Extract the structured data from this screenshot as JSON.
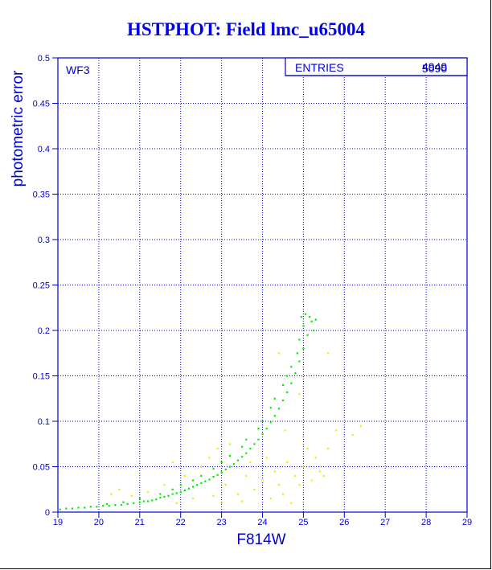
{
  "window": {
    "title": "HSTPHOT: Field lmc_u65004"
  },
  "colors": {
    "frame": "#0000cc",
    "grid": "#0000cc",
    "primary_points": "#00ee00",
    "secondary_points": "#eeee00",
    "title": "#0000ee"
  },
  "chart_data": {
    "type": "scatter",
    "title": "HSTPHOT: Field lmc_u65004",
    "xlabel": "F814W",
    "ylabel": "photometric error",
    "xlim": [
      19,
      29
    ],
    "ylim": [
      0,
      0.5
    ],
    "xticks": [
      "19",
      "20",
      "21",
      "22",
      "23",
      "24",
      "25",
      "26",
      "27",
      "28",
      "29"
    ],
    "yticks": [
      "0",
      "0.05",
      "0.1",
      "0.15",
      "0.2",
      "0.25",
      "0.3",
      "0.35",
      "0.4",
      "0.45",
      "0.5"
    ],
    "grid": true,
    "panel_label": "WF3",
    "stats_box": {
      "label": "ENTRIES",
      "value_overlaid_a": "4949",
      "value_overlaid_b": "5090"
    },
    "series": [
      {
        "color": "#00ee00",
        "points": [
          [
            19.05,
            0.003
          ],
          [
            19.2,
            0.004
          ],
          [
            19.35,
            0.004
          ],
          [
            19.5,
            0.005
          ],
          [
            19.65,
            0.005
          ],
          [
            19.8,
            0.006
          ],
          [
            19.95,
            0.006
          ],
          [
            20.1,
            0.007
          ],
          [
            20.25,
            0.007
          ],
          [
            20.4,
            0.008
          ],
          [
            20.55,
            0.008
          ],
          [
            20.7,
            0.009
          ],
          [
            20.85,
            0.01
          ],
          [
            21.0,
            0.011
          ],
          [
            21.1,
            0.012
          ],
          [
            21.2,
            0.012
          ],
          [
            21.3,
            0.013
          ],
          [
            21.4,
            0.014
          ],
          [
            21.5,
            0.016
          ],
          [
            21.6,
            0.017
          ],
          [
            21.7,
            0.018
          ],
          [
            21.8,
            0.02
          ],
          [
            21.9,
            0.021
          ],
          [
            22.0,
            0.022
          ],
          [
            22.1,
            0.024
          ],
          [
            22.2,
            0.026
          ],
          [
            22.3,
            0.028
          ],
          [
            22.4,
            0.03
          ],
          [
            22.5,
            0.032
          ],
          [
            22.6,
            0.034
          ],
          [
            22.7,
            0.036
          ],
          [
            22.8,
            0.039
          ],
          [
            22.9,
            0.041
          ],
          [
            23.0,
            0.044
          ],
          [
            23.1,
            0.047
          ],
          [
            23.2,
            0.05
          ],
          [
            23.3,
            0.053
          ],
          [
            23.4,
            0.057
          ],
          [
            23.5,
            0.061
          ],
          [
            23.6,
            0.065
          ],
          [
            23.7,
            0.07
          ],
          [
            23.8,
            0.075
          ],
          [
            23.9,
            0.08
          ],
          [
            24.0,
            0.086
          ],
          [
            24.1,
            0.092
          ],
          [
            24.2,
            0.099
          ],
          [
            24.3,
            0.106
          ],
          [
            24.4,
            0.114
          ],
          [
            24.5,
            0.123
          ],
          [
            24.6,
            0.132
          ],
          [
            24.7,
            0.142
          ],
          [
            24.8,
            0.153
          ],
          [
            24.9,
            0.166
          ],
          [
            25.0,
            0.18
          ],
          [
            25.1,
            0.195
          ],
          [
            25.2,
            0.21
          ],
          [
            21.8,
            0.025
          ],
          [
            22.3,
            0.035
          ],
          [
            22.8,
            0.048
          ],
          [
            23.2,
            0.062
          ],
          [
            23.6,
            0.08
          ],
          [
            24.0,
            0.1
          ],
          [
            24.3,
            0.125
          ],
          [
            24.5,
            0.14
          ],
          [
            24.7,
            0.16
          ],
          [
            24.9,
            0.19
          ],
          [
            25.0,
            0.205
          ],
          [
            25.15,
            0.215
          ],
          [
            25.3,
            0.212
          ],
          [
            25.25,
            0.2
          ],
          [
            24.85,
            0.175
          ],
          [
            24.6,
            0.15
          ],
          [
            24.2,
            0.115
          ],
          [
            23.9,
            0.092
          ],
          [
            23.5,
            0.072
          ],
          [
            23.0,
            0.055
          ],
          [
            22.5,
            0.04
          ],
          [
            22.0,
            0.03
          ],
          [
            21.5,
            0.02
          ],
          [
            21.0,
            0.015
          ],
          [
            20.6,
            0.011
          ],
          [
            20.2,
            0.009
          ],
          [
            24.95,
            0.215
          ],
          [
            25.05,
            0.218
          ]
        ]
      },
      {
        "color": "#eeee00",
        "points": [
          [
            20.3,
            0.02
          ],
          [
            20.5,
            0.025
          ],
          [
            20.8,
            0.018
          ],
          [
            21.2,
            0.022
          ],
          [
            21.6,
            0.03
          ],
          [
            21.8,
            0.055
          ],
          [
            22.1,
            0.04
          ],
          [
            22.3,
            0.015
          ],
          [
            22.5,
            0.05
          ],
          [
            22.7,
            0.06
          ],
          [
            22.9,
            0.07
          ],
          [
            23.0,
            0.01
          ],
          [
            23.1,
            0.03
          ],
          [
            23.2,
            0.075
          ],
          [
            23.4,
            0.02
          ],
          [
            23.5,
            0.012
          ],
          [
            23.6,
            0.04
          ],
          [
            23.8,
            0.025
          ],
          [
            24.0,
            0.035
          ],
          [
            24.2,
            0.015
          ],
          [
            24.3,
            0.045
          ],
          [
            24.4,
            0.03
          ],
          [
            24.5,
            0.02
          ],
          [
            24.6,
            0.055
          ],
          [
            24.7,
            0.01
          ],
          [
            24.8,
            0.04
          ],
          [
            24.9,
            0.03
          ],
          [
            25.0,
            0.05
          ],
          [
            25.2,
            0.035
          ],
          [
            25.3,
            0.06
          ],
          [
            25.4,
            0.045
          ],
          [
            25.5,
            0.04
          ],
          [
            25.6,
            0.07
          ],
          [
            25.8,
            0.09
          ],
          [
            26.2,
            0.085
          ],
          [
            26.4,
            0.095
          ],
          [
            24.4,
            0.175
          ],
          [
            24.9,
            0.13
          ],
          [
            25.6,
            0.175
          ],
          [
            24.1,
            0.06
          ],
          [
            23.7,
            0.055
          ],
          [
            22.8,
            0.018
          ],
          [
            21.9,
            0.01
          ],
          [
            24.55,
            0.09
          ],
          [
            25.1,
            0.07
          ]
        ]
      }
    ]
  }
}
